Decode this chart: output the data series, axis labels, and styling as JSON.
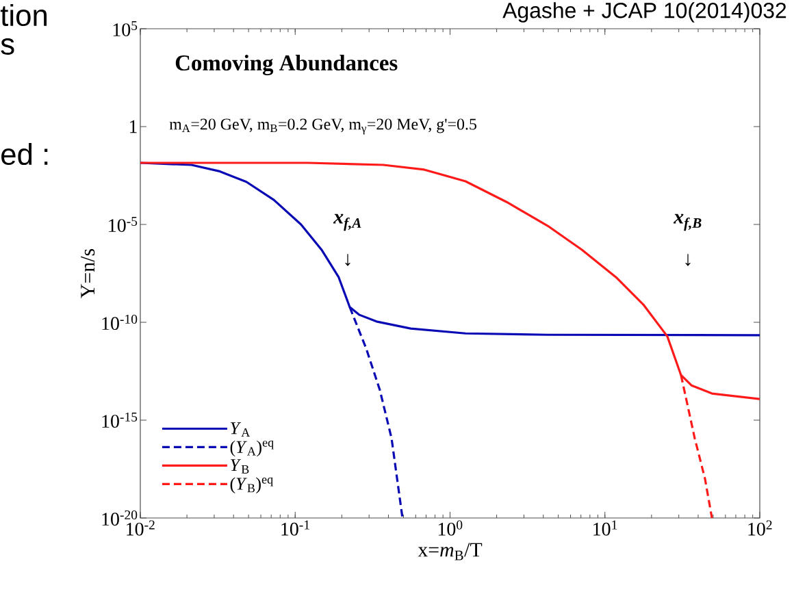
{
  "chart_data": {
    "type": "line",
    "xlabel": "x=*m*$_{B}$/T",
    "ylabel": "Y=n/s",
    "log": "xy",
    "xlim": [
      0.01,
      100
    ],
    "ylim": [
      1e-20,
      100000
    ],
    "xticks": [
      {
        "value": 0.01,
        "label": "10$^{-2}$"
      },
      {
        "value": 0.1,
        "label": "10$^{-1}$"
      },
      {
        "value": 1,
        "label": "10$^{0}$"
      },
      {
        "value": 10,
        "label": "10$^{1}$"
      },
      {
        "value": 100,
        "label": "10$^{2}$"
      }
    ],
    "yticks": [
      {
        "value": 1e-20,
        "label": "10$^{-20}$"
      },
      {
        "value": 1e-15,
        "label": "10$^{-15}$"
      },
      {
        "value": 1e-10,
        "label": "10$^{-10}$"
      },
      {
        "value": 1e-05,
        "label": "10$^{-5}$"
      },
      1,
      {
        "value": 100000,
        "label": "10$^{5}$"
      }
    ],
    "legend": "bottom left",
    "series": [
      {
        "name": "*Y*$_{A}$",
        "color": "#0a0ab4",
        "line_style": "solid",
        "x": [
          0.01,
          0.0214,
          0.0322,
          0.0484,
          0.0728,
          0.109,
          0.148,
          0.191,
          0.225,
          0.26,
          0.335,
          0.557,
          1.26,
          4.26,
          100
        ],
        "values": [
          0.014,
          0.011,
          0.0053,
          0.0015,
          0.00018,
          1e-05,
          5.1e-07,
          2e-08,
          6e-10,
          2.4e-10,
          1.1e-10,
          4.8e-11,
          2.7e-11,
          2.3e-11,
          2.2e-11
        ]
      },
      {
        "name": "(*Y*$_{A}$)$^{eq}$",
        "color": "#0a0ab4",
        "line_style": "dashed",
        "x": [
          0.225,
          0.288,
          0.352,
          0.419,
          0.493
        ],
        "values": [
          6e-10,
          4.4e-12,
          3.5e-14,
          1.2e-16,
          1e-20
        ]
      },
      {
        "name": "*Y*$_{B}$",
        "color": "#ff1a1a",
        "line_style": "solid",
        "x": [
          0.01,
          0.121,
          0.371,
          0.682,
          1.26,
          2.32,
          4.27,
          7.1,
          11.8,
          17.7,
          25.3,
          31.0,
          36.2,
          49.1,
          100
        ],
        "values": [
          0.014,
          0.014,
          0.011,
          0.0063,
          0.0016,
          0.00014,
          8.5e-06,
          5.1e-07,
          2e-08,
          8.1e-10,
          1.9e-11,
          2e-13,
          6e-14,
          2.3e-14,
          1.2e-14
        ]
      },
      {
        "name": "(*Y*$_{B}$)$^{eq}$",
        "color": "#ff1a1a",
        "line_style": "dashed",
        "x": [
          31.0,
          38.0,
          44.3,
          49.1
        ],
        "values": [
          2e-13,
          1.2e-16,
          1e-18,
          1e-20
        ]
      }
    ],
    "annotations": [
      "Comoving Abundances",
      "m$_{A}$=20 GeV, m$_{B}$=0.2 GeV, m$_{γ}$=20 MeV, g'=0.5",
      "x$_{f,A}$",
      "↓",
      "x$_{f,B}$",
      "↓",
      "Agashe + JCAP 10(2014)032",
      "tion",
      "s",
      "ed :"
    ]
  }
}
